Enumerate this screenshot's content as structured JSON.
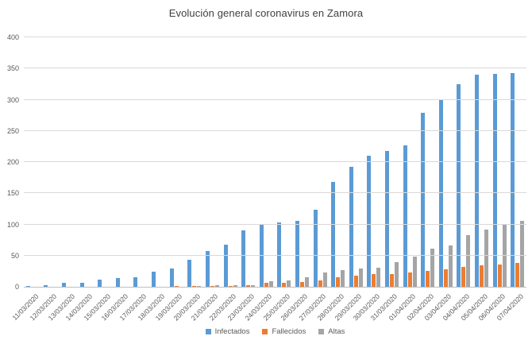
{
  "chart_data": {
    "type": "bar",
    "title": "Evolución general coronavirus en Zamora",
    "categories": [
      "11/03/2020",
      "12/03/2020",
      "13/03/2020",
      "14/03/2020",
      "15/03/2020",
      "16/03/2020",
      "17/03/2020",
      "18/03/2020",
      "19/03/2020",
      "20/03/2020",
      "21/03/2020",
      "22/03/2020",
      "23/03/2020",
      "24/03/2020",
      "25/03/2020",
      "26/03/2020",
      "27/03/2020",
      "28/03/2020",
      "29/03/2020",
      "30/03/2020",
      "31/03/2020",
      "01/04/2020",
      "02/04/2020",
      "03/04/2020",
      "04/04/2020",
      "05/04/2020",
      "06/04/2020",
      "07/04/2020"
    ],
    "series": [
      {
        "name": "Infectados",
        "color": "#5B9BD5",
        "values": [
          1,
          3,
          7,
          7,
          11,
          14,
          15,
          24,
          29,
          43,
          57,
          68,
          90,
          99,
          103,
          106,
          124,
          168,
          193,
          210,
          218,
          227,
          279,
          299,
          325,
          340,
          341,
          343
        ]
      },
      {
        "name": "Fallecidos",
        "color": "#ED7D31",
        "values": [
          0,
          0,
          0,
          0,
          0,
          0,
          0,
          0,
          1,
          1,
          1,
          1,
          2,
          6,
          6,
          8,
          10,
          15,
          18,
          20,
          21,
          23,
          26,
          28,
          32,
          35,
          36,
          38
        ]
      },
      {
        "name": "Altas",
        "color": "#A5A5A5",
        "values": [
          0,
          0,
          0,
          0,
          0,
          0,
          0,
          0,
          0,
          1,
          2,
          2,
          3,
          9,
          10,
          15,
          23,
          27,
          29,
          31,
          40,
          49,
          61,
          66,
          83,
          92,
          99,
          106
        ]
      }
    ],
    "xlabel": "",
    "ylabel": "",
    "ylim": [
      0,
      400
    ],
    "ytick_step": 50,
    "yticks": [
      "0",
      "50",
      "100",
      "150",
      "200",
      "250",
      "300",
      "350",
      "400"
    ],
    "grid": "horizontal",
    "legend_position": "bottom",
    "colors": {
      "gridline": "#d9d9d9",
      "axis_line": "#bfbfbf",
      "tick_text": "#595959",
      "title_text": "#404040",
      "background": "#ffffff"
    }
  }
}
